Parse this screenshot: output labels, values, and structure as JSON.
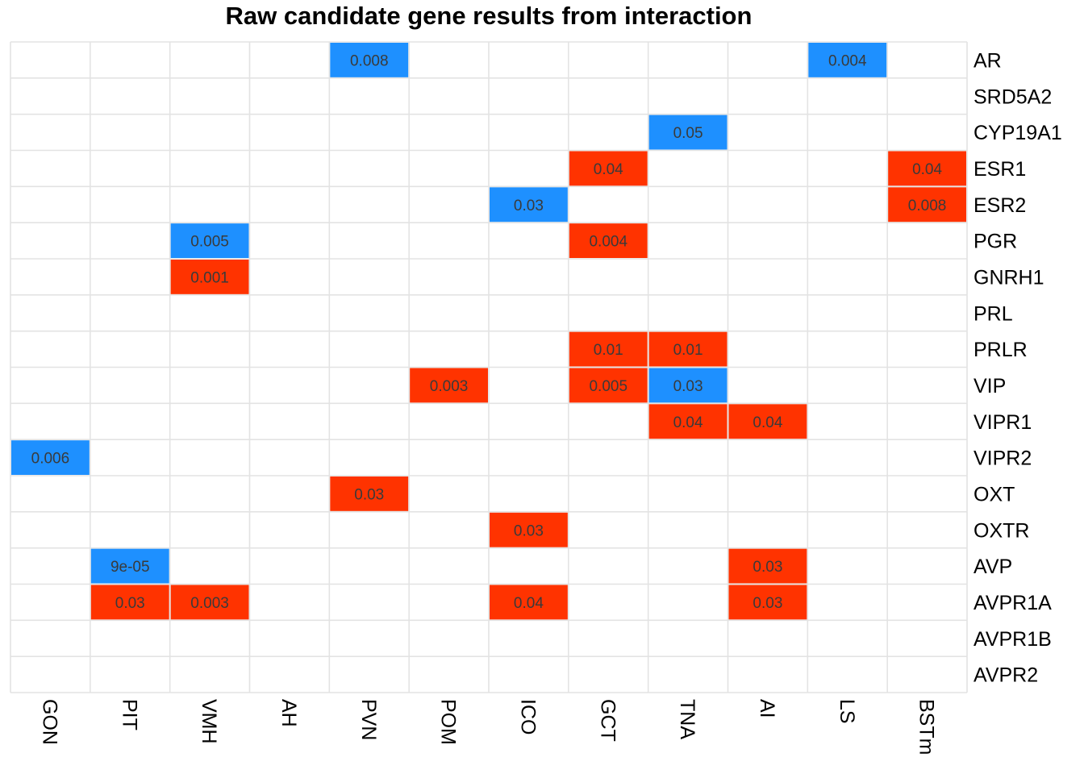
{
  "chart_data": {
    "type": "heatmap",
    "title": "Raw candidate gene results from interaction",
    "columns": [
      "GON",
      "PIT",
      "VMH",
      "AH",
      "PVN",
      "POM",
      "ICO",
      "GCT",
      "TNA",
      "AI",
      "LS",
      "BSTm"
    ],
    "rows": [
      "AR",
      "SRD5A2",
      "CYP19A1",
      "ESR1",
      "ESR2",
      "PGR",
      "GNRH1",
      "PRL",
      "PRLR",
      "VIP",
      "VIPR1",
      "VIPR2",
      "OXT",
      "OXTR",
      "AVP",
      "AVPR1A",
      "AVPR1B",
      "AVPR2"
    ],
    "colors": {
      "blue": "#1e90ff",
      "red": "#ff3300",
      "grid": "#e3e3e3",
      "background": "#ffffff"
    },
    "cells": [
      {
        "row": "AR",
        "col": "PVN",
        "value": "0.008",
        "color": "blue"
      },
      {
        "row": "AR",
        "col": "LS",
        "value": "0.004",
        "color": "blue"
      },
      {
        "row": "CYP19A1",
        "col": "TNA",
        "value": "0.05",
        "color": "blue"
      },
      {
        "row": "ESR1",
        "col": "GCT",
        "value": "0.04",
        "color": "red"
      },
      {
        "row": "ESR1",
        "col": "BSTm",
        "value": "0.04",
        "color": "red"
      },
      {
        "row": "ESR2",
        "col": "ICO",
        "value": "0.03",
        "color": "blue"
      },
      {
        "row": "ESR2",
        "col": "BSTm",
        "value": "0.008",
        "color": "red"
      },
      {
        "row": "PGR",
        "col": "VMH",
        "value": "0.005",
        "color": "blue"
      },
      {
        "row": "PGR",
        "col": "GCT",
        "value": "0.004",
        "color": "red"
      },
      {
        "row": "GNRH1",
        "col": "VMH",
        "value": "0.001",
        "color": "red"
      },
      {
        "row": "PRLR",
        "col": "GCT",
        "value": "0.01",
        "color": "red"
      },
      {
        "row": "PRLR",
        "col": "TNA",
        "value": "0.01",
        "color": "red"
      },
      {
        "row": "VIP",
        "col": "POM",
        "value": "0.003",
        "color": "red"
      },
      {
        "row": "VIP",
        "col": "GCT",
        "value": "0.005",
        "color": "red"
      },
      {
        "row": "VIP",
        "col": "TNA",
        "value": "0.03",
        "color": "blue"
      },
      {
        "row": "VIPR1",
        "col": "TNA",
        "value": "0.04",
        "color": "red"
      },
      {
        "row": "VIPR1",
        "col": "AI",
        "value": "0.04",
        "color": "red"
      },
      {
        "row": "VIPR2",
        "col": "GON",
        "value": "0.006",
        "color": "blue"
      },
      {
        "row": "OXT",
        "col": "PVN",
        "value": "0.03",
        "color": "red"
      },
      {
        "row": "OXTR",
        "col": "ICO",
        "value": "0.03",
        "color": "red"
      },
      {
        "row": "AVP",
        "col": "PIT",
        "value": "9e-05",
        "color": "blue"
      },
      {
        "row": "AVP",
        "col": "AI",
        "value": "0.03",
        "color": "red"
      },
      {
        "row": "AVPR1A",
        "col": "PIT",
        "value": "0.03",
        "color": "red"
      },
      {
        "row": "AVPR1A",
        "col": "VMH",
        "value": "0.003",
        "color": "red"
      },
      {
        "row": "AVPR1A",
        "col": "ICO",
        "value": "0.04",
        "color": "red"
      },
      {
        "row": "AVPR1A",
        "col": "AI",
        "value": "0.03",
        "color": "red"
      }
    ],
    "legend": "none",
    "grid": true
  }
}
